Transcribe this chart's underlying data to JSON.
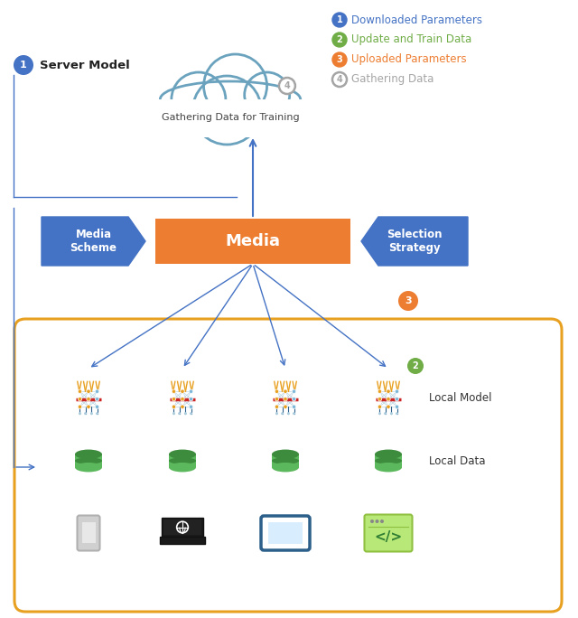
{
  "bg_color": "#ffffff",
  "legend_items": [
    {
      "num": "1",
      "text": "Downloaded Parameters",
      "color": "#4472C4",
      "text_color": "#4472C4"
    },
    {
      "num": "2",
      "text": "Update and Train Data",
      "color": "#70AD47",
      "text_color": "#70AD47"
    },
    {
      "num": "3",
      "text": "Uploaded Parameters",
      "color": "#ED7D31",
      "text_color": "#ED7D31"
    },
    {
      "num": "4",
      "text": "Gathering Data",
      "color": "#A5A5A5",
      "text_color": "#A5A5A5"
    }
  ],
  "cloud_text": "Gathering Data for Training",
  "media_text": "Media",
  "media_scheme_text": "Media\nScheme",
  "selection_strategy_text": "Selection\nStrategy",
  "server_model_text": "Server Model",
  "local_model_text": "Local Model",
  "local_data_text": "Local Data",
  "num1_color": "#4472C4",
  "num2_color": "#70AD47",
  "num3_color": "#ED7D31",
  "num4_color": "#A5A5A5",
  "cloud_border": "#6BA3BE",
  "media_bg": "#ED7D31",
  "arrow_color": "#4472C4",
  "box_border": "#E8A020",
  "pentagon_bg": "#4472C4",
  "nn_spike_color": "#E8A020",
  "nn_node_color": "#E8A020",
  "nn_wire_color": "#2C5F8A",
  "nn_red_bar": "#CC2222",
  "db_green": "#5CB85C",
  "db_dark_green": "#3D8B3D"
}
